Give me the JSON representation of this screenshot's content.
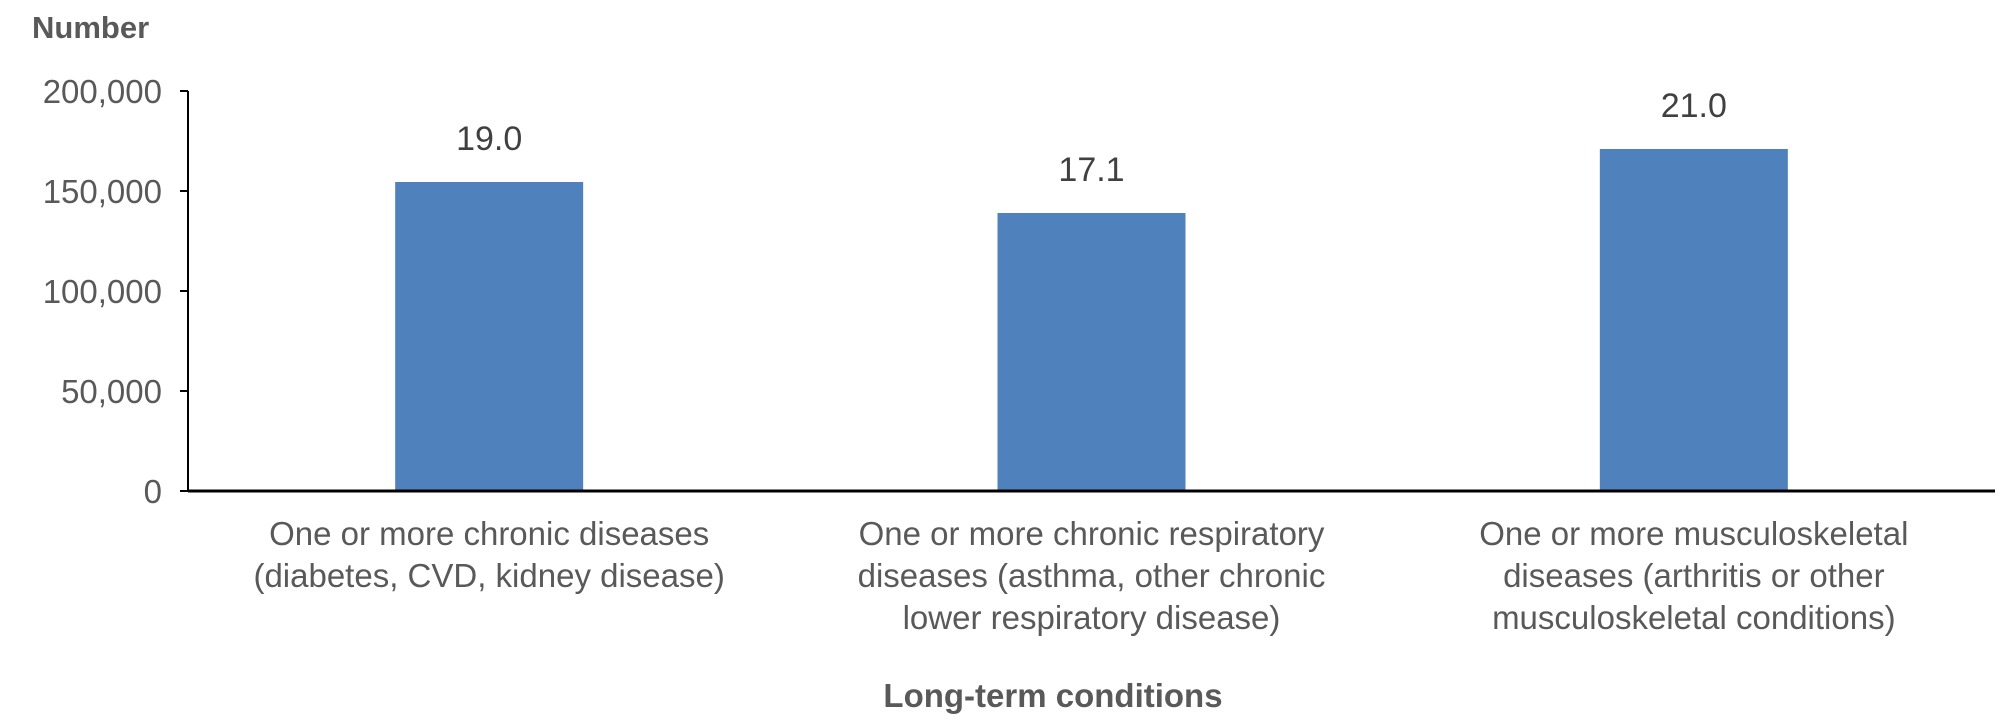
{
  "chart_data": {
    "type": "bar",
    "ylabel": "Number",
    "xlabel": "Long-term conditions",
    "ylim": [
      0,
      200000
    ],
    "yticks": [
      "0",
      "50,000",
      "100,000",
      "150,000",
      "200,000"
    ],
    "ytick_values": [
      0,
      50000,
      100000,
      150000,
      200000
    ],
    "categories": [
      [
        "One or more chronic diseases",
        "(diabetes, CVD, kidney disease)"
      ],
      [
        "One or more chronic respiratory",
        "diseases (asthma, other chronic",
        "lower respiratory disease)"
      ],
      [
        "One or more musculoskeletal",
        "diseases (arthritis or other",
        "musculoskeletal conditions)"
      ]
    ],
    "values": [
      154500,
      139000,
      171000
    ],
    "data_labels": [
      "19.0",
      "17.1",
      "21.0"
    ],
    "colors": {
      "bar": "#4f81bd",
      "axis": "#000000",
      "text": "#595959"
    },
    "grid": false
  }
}
